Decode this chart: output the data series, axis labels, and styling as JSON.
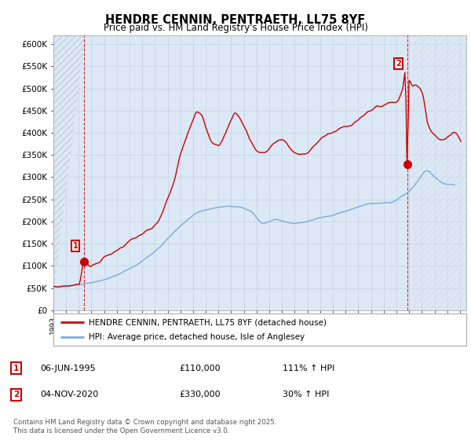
{
  "title": "HENDRE CENNIN, PENTRAETH, LL75 8YF",
  "subtitle": "Price paid vs. HM Land Registry's House Price Index (HPI)",
  "ylabel_ticks": [
    "£0",
    "£50K",
    "£100K",
    "£150K",
    "£200K",
    "£250K",
    "£300K",
    "£350K",
    "£400K",
    "£450K",
    "£500K",
    "£550K",
    "£600K"
  ],
  "ytick_values": [
    0,
    50000,
    100000,
    150000,
    200000,
    250000,
    300000,
    350000,
    400000,
    450000,
    500000,
    550000,
    600000
  ],
  "ylim": [
    0,
    620000
  ],
  "xlim_start": 1993.0,
  "xlim_end": 2025.5,
  "xtick_years": [
    1993,
    1994,
    1995,
    1996,
    1997,
    1998,
    1999,
    2000,
    2001,
    2002,
    2003,
    2004,
    2005,
    2006,
    2007,
    2008,
    2009,
    2010,
    2011,
    2012,
    2013,
    2014,
    2015,
    2016,
    2017,
    2018,
    2019,
    2020,
    2021,
    2022,
    2023,
    2024,
    2025
  ],
  "point1_x": 1995.43,
  "point1_y": 110000,
  "point1_label": "1",
  "point2_x": 2020.84,
  "point2_y": 330000,
  "point2_label": "2",
  "hpi_color": "#7aacdc",
  "price_color": "#cc0000",
  "grid_color": "#c8d8e8",
  "bg_color": "#ffffff",
  "plot_bg_color": "#dce8f5",
  "hatch_color": "#c0d0e0",
  "legend_line1": "HENDRE CENNIN, PENTRAETH, LL75 8YF (detached house)",
  "legend_line2": "HPI: Average price, detached house, Isle of Anglesey",
  "annotation1_date": "06-JUN-1995",
  "annotation1_price": "£110,000",
  "annotation1_hpi": "111% ↑ HPI",
  "annotation2_date": "04-NOV-2020",
  "annotation2_price": "£330,000",
  "annotation2_hpi": "30% ↑ HPI",
  "footer": "Contains HM Land Registry data © Crown copyright and database right 2025.\nThis data is licensed under the Open Government Licence v3.0."
}
